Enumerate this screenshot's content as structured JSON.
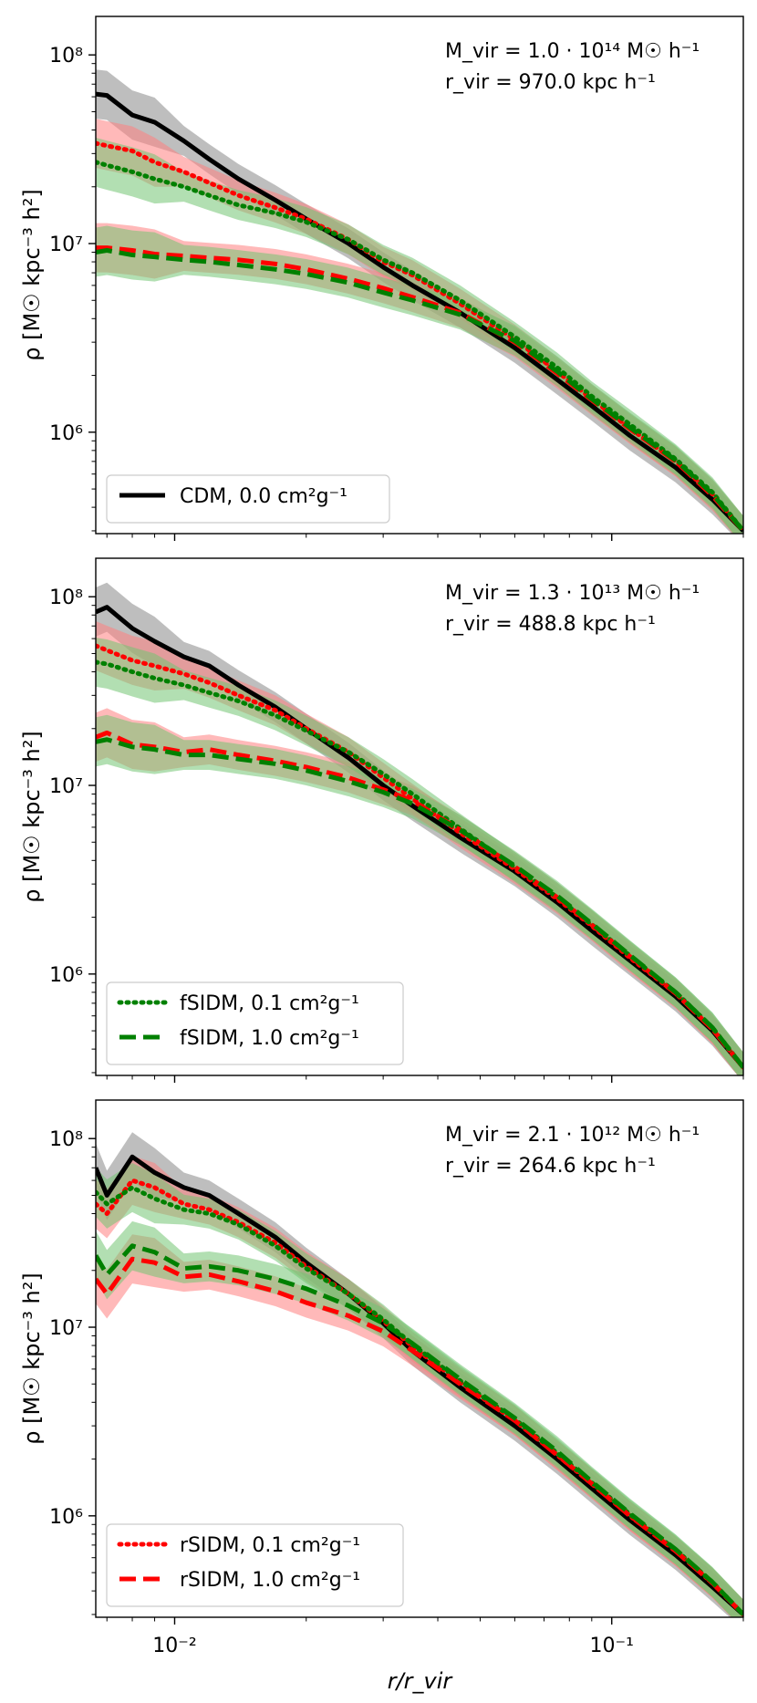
{
  "chart_data": [
    {
      "type": "line",
      "xscale": "log",
      "yscale": "log",
      "xlim": [
        0.0066,
        0.2
      ],
      "ylim": [
        290000,
        160000000
      ],
      "ylabel": "ρ [M☉ kpc⁻³ h²]",
      "xlabel": "",
      "yticks": [
        {
          "value": 1000000,
          "label": "10⁶"
        },
        {
          "value": 10000000,
          "label": "10⁷"
        },
        {
          "value": 100000000,
          "label": "10⁸"
        }
      ],
      "annotation": [
        "M_vir = 1.0 · 10¹⁴ M☉ h⁻¹",
        "r_vir = 970.0 kpc h⁻¹"
      ],
      "legend": {
        "position": "bottom-left",
        "entries": [
          {
            "label": "CDM, 0.0 cm²g⁻¹",
            "color": "#000000",
            "style": "solid"
          }
        ]
      },
      "x": [
        0.0066,
        0.007,
        0.008,
        0.009,
        0.0105,
        0.012,
        0.014,
        0.017,
        0.02,
        0.025,
        0.03,
        0.035,
        0.045,
        0.06,
        0.075,
        0.09,
        0.11,
        0.14,
        0.17,
        0.2
      ],
      "series": [
        {
          "name": "CDM, 0.0 cm²g⁻¹",
          "style": "solid",
          "color": "#000000",
          "band": "#888888",
          "values": [
            62000000,
            61000000,
            48000000,
            44000000,
            35000000,
            28000000,
            22000000,
            17000000,
            13500000,
            10000000,
            7500000,
            6000000,
            4300000,
            2800000,
            1900000,
            1380000,
            960000,
            650000,
            440000,
            300000
          ]
        },
        {
          "style": "dotted",
          "color": "#ff0000",
          "band": "#ff8080",
          "values": [
            34000000,
            33000000,
            31000000,
            27000000,
            24000000,
            21000000,
            18000000,
            15500000,
            13500000,
            10500000,
            8000000,
            6800000,
            4800000,
            3100000,
            2100000,
            1500000,
            1050000,
            700000,
            470000,
            300000
          ]
        },
        {
          "style": "dotted",
          "color": "#008000",
          "band": "#72c472",
          "values": [
            27000000,
            26000000,
            24000000,
            22000000,
            20000000,
            18000000,
            16000000,
            14500000,
            13000000,
            10500000,
            8200000,
            7000000,
            5000000,
            3200000,
            2200000,
            1550000,
            1100000,
            720000,
            480000,
            300000
          ]
        },
        {
          "style": "dashed",
          "color": "#ff0000",
          "band": "#ff8080",
          "values": [
            9500000,
            9500000,
            9200000,
            8800000,
            8600000,
            8400000,
            8200000,
            7800000,
            7300000,
            6500000,
            5800000,
            5200000,
            4300000,
            3000000,
            2050000,
            1480000,
            1040000,
            700000,
            460000,
            300000
          ]
        },
        {
          "style": "dashed",
          "color": "#008000",
          "band": "#72c472",
          "values": [
            9000000,
            9200000,
            8700000,
            8500000,
            8200000,
            8000000,
            7700000,
            7300000,
            6900000,
            6200000,
            5500000,
            5000000,
            4200000,
            3050000,
            2100000,
            1500000,
            1060000,
            710000,
            470000,
            300000
          ]
        }
      ]
    },
    {
      "type": "line",
      "xscale": "log",
      "yscale": "log",
      "xlim": [
        0.0066,
        0.2
      ],
      "ylim": [
        290000,
        160000000
      ],
      "ylabel": "ρ [M☉ kpc⁻³ h²]",
      "xlabel": "",
      "yticks": [
        {
          "value": 1000000,
          "label": "10⁶"
        },
        {
          "value": 10000000,
          "label": "10⁷"
        },
        {
          "value": 100000000,
          "label": "10⁸"
        }
      ],
      "annotation": [
        "M_vir = 1.3 · 10¹³ M☉ h⁻¹",
        "r_vir = 488.8 kpc h⁻¹"
      ],
      "legend": {
        "position": "bottom-left",
        "entries": [
          {
            "label": "fSIDM, 0.1 cm²g⁻¹",
            "color": "#008000",
            "style": "dotted"
          },
          {
            "label": "fSIDM, 1.0 cm²g⁻¹",
            "color": "#008000",
            "style": "dashed"
          }
        ]
      },
      "x": [
        0.0066,
        0.007,
        0.008,
        0.009,
        0.0105,
        0.012,
        0.014,
        0.017,
        0.02,
        0.025,
        0.03,
        0.035,
        0.045,
        0.06,
        0.075,
        0.09,
        0.11,
        0.14,
        0.17,
        0.2
      ],
      "series": [
        {
          "style": "solid",
          "color": "#000000",
          "band": "#888888",
          "values": [
            83000000,
            88000000,
            68000000,
            58000000,
            48000000,
            43000000,
            34000000,
            26000000,
            20000000,
            14000000,
            10000000,
            7800000,
            5300000,
            3500000,
            2400000,
            1700000,
            1180000,
            760000,
            500000,
            320000
          ]
        },
        {
          "style": "dotted",
          "color": "#ff0000",
          "band": "#ff8080",
          "values": [
            55000000,
            52000000,
            46000000,
            43000000,
            39000000,
            35000000,
            30000000,
            25000000,
            20000000,
            15000000,
            11000000,
            8500000,
            5600000,
            3600000,
            2500000,
            1800000,
            1220000,
            790000,
            510000,
            320000
          ]
        },
        {
          "style": "dotted",
          "color": "#008000",
          "band": "#72c472",
          "values": [
            45000000,
            44000000,
            40000000,
            37000000,
            34000000,
            31000000,
            28000000,
            23500000,
            19500000,
            15000000,
            11500000,
            9000000,
            5900000,
            3700000,
            2550000,
            1830000,
            1250000,
            800000,
            520000,
            320000
          ]
        },
        {
          "style": "dashed",
          "color": "#ff0000",
          "band": "#ff8080",
          "values": [
            18000000,
            19000000,
            16500000,
            16000000,
            15000000,
            15500000,
            14500000,
            13500000,
            12500000,
            11000000,
            9500000,
            8300000,
            5800000,
            3700000,
            2550000,
            1820000,
            1240000,
            790000,
            510000,
            320000
          ]
        },
        {
          "style": "dashed",
          "color": "#008000",
          "band": "#72c472",
          "values": [
            17000000,
            17500000,
            16000000,
            15500000,
            14500000,
            14500000,
            13800000,
            13000000,
            12000000,
            10500000,
            9200000,
            8000000,
            5800000,
            3750000,
            2600000,
            1850000,
            1260000,
            800000,
            520000,
            320000
          ]
        }
      ]
    },
    {
      "type": "line",
      "xscale": "log",
      "yscale": "log",
      "xlim": [
        0.0066,
        0.2
      ],
      "ylim": [
        290000,
        160000000
      ],
      "ylabel": "ρ [M☉ kpc⁻³ h²]",
      "xlabel": "r/r_vir",
      "xticks": [
        {
          "value": 0.01,
          "label": "10⁻²"
        },
        {
          "value": 0.1,
          "label": "10⁻¹"
        }
      ],
      "yticks": [
        {
          "value": 1000000,
          "label": "10⁶"
        },
        {
          "value": 10000000,
          "label": "10⁷"
        },
        {
          "value": 100000000,
          "label": "10⁸"
        }
      ],
      "annotation": [
        "M_vir = 2.1 · 10¹² M☉ h⁻¹",
        "r_vir = 264.6 kpc h⁻¹"
      ],
      "legend": {
        "position": "bottom-left",
        "entries": [
          {
            "label": "rSIDM, 0.1 cm²g⁻¹",
            "color": "#ff0000",
            "style": "dotted"
          },
          {
            "label": "rSIDM, 1.0 cm²g⁻¹",
            "color": "#ff0000",
            "style": "dashed"
          }
        ]
      },
      "x": [
        0.0066,
        0.007,
        0.008,
        0.009,
        0.0105,
        0.012,
        0.014,
        0.017,
        0.02,
        0.025,
        0.03,
        0.035,
        0.045,
        0.06,
        0.075,
        0.09,
        0.11,
        0.14,
        0.17,
        0.2
      ],
      "series": [
        {
          "style": "solid",
          "color": "#000000",
          "band": "#888888",
          "values": [
            70000000,
            50000000,
            80000000,
            66000000,
            55000000,
            50000000,
            40000000,
            30000000,
            22000000,
            15000000,
            10500000,
            7500000,
            4800000,
            3000000,
            2000000,
            1400000,
            950000,
            620000,
            420000,
            300000
          ]
        },
        {
          "style": "dotted",
          "color": "#ff0000",
          "band": "#ff8080",
          "values": [
            45000000,
            40000000,
            60000000,
            55000000,
            45000000,
            42000000,
            36000000,
            28000000,
            21000000,
            15000000,
            10800000,
            7900000,
            5100000,
            3200000,
            2100000,
            1480000,
            1000000,
            650000,
            440000,
            300000
          ]
        },
        {
          "style": "dotted",
          "color": "#008000",
          "band": "#72c472",
          "values": [
            52000000,
            45000000,
            55000000,
            48000000,
            42000000,
            40000000,
            35000000,
            27000000,
            20500000,
            15000000,
            11000000,
            8100000,
            5200000,
            3250000,
            2150000,
            1500000,
            1020000,
            660000,
            445000,
            300000
          ]
        },
        {
          "style": "dashed",
          "color": "#ff0000",
          "band": "#ff8080",
          "values": [
            18000000,
            15000000,
            23000000,
            22000000,
            18500000,
            19000000,
            17500000,
            15500000,
            13500000,
            11500000,
            9500000,
            7500000,
            5000000,
            3200000,
            2100000,
            1480000,
            1000000,
            650000,
            440000,
            300000
          ]
        },
        {
          "style": "dashed",
          "color": "#008000",
          "band": "#72c472",
          "values": [
            24000000,
            19000000,
            27000000,
            25000000,
            20500000,
            21000000,
            20000000,
            18000000,
            16000000,
            13000000,
            10500000,
            8200000,
            5300000,
            3300000,
            2200000,
            1520000,
            1030000,
            665000,
            445000,
            300000
          ]
        }
      ]
    }
  ]
}
